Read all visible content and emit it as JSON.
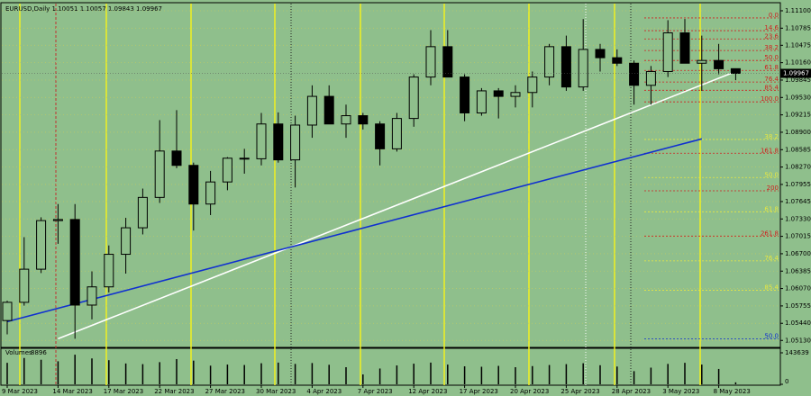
{
  "chart_data": {
    "type": "candlestick",
    "title": "EURUSD,Daily  1.10051 1.10057 1.09843 1.09967",
    "categories": [
      "9 Mar 2023",
      null,
      null,
      "14 Mar 2023",
      null,
      null,
      "17 Mar 2023",
      null,
      null,
      "22 Mar 2023",
      null,
      null,
      "27 Mar 2023",
      null,
      null,
      "30 Mar 2023",
      null,
      null,
      "4 Apr 2023",
      null,
      null,
      "7 Apr 2023",
      null,
      null,
      "12 Apr 2023",
      null,
      null,
      "17 Apr 2023",
      null,
      null,
      "20 Apr 2023",
      null,
      null,
      "25 Apr 2023",
      null,
      null,
      "28 Apr 2023",
      null,
      null,
      "3 May 2023",
      null,
      null,
      "8 May 2023",
      null
    ],
    "open": [
      1.0549,
      1.0582,
      1.0642,
      1.073,
      1.0732,
      1.0577,
      1.061,
      1.0669,
      1.0717,
      1.0772,
      1.0856,
      1.083,
      1.076,
      1.08,
      1.0843,
      1.0842,
      1.0905,
      1.084,
      1.0903,
      1.0955,
      1.0905,
      1.092,
      1.0905,
      1.086,
      1.0915,
      1.099,
      1.1045,
      1.099,
      1.0925,
      1.0965,
      1.0955,
      1.0962,
      1.099,
      1.1045,
      1.0972,
      1.104,
      1.1025,
      1.1015,
      1.0975,
      1.1,
      1.107,
      1.1015,
      1.102,
      1.10051
    ],
    "high": [
      1.0585,
      1.07,
      1.0736,
      1.076,
      1.076,
      1.0638,
      1.0685,
      1.0735,
      1.0788,
      1.0912,
      1.093,
      1.0835,
      1.082,
      1.0845,
      1.086,
      1.0925,
      1.0926,
      1.092,
      1.0975,
      1.0975,
      1.094,
      1.0925,
      1.091,
      1.0925,
      1.0995,
      1.1075,
      1.1075,
      1.0995,
      1.097,
      1.097,
      1.0975,
      1.1,
      1.105,
      1.1065,
      1.1095,
      1.105,
      1.104,
      1.102,
      1.101,
      1.1093,
      1.1095,
      1.1065,
      1.105,
      1.10057
    ],
    "low": [
      1.0524,
      1.0576,
      1.0635,
      1.0688,
      1.0516,
      1.0551,
      1.06,
      1.0634,
      1.0705,
      1.0762,
      1.0825,
      1.0712,
      1.074,
      1.0785,
      1.0815,
      1.083,
      1.0835,
      1.079,
      1.088,
      1.091,
      1.088,
      1.0895,
      1.083,
      1.0855,
      1.09,
      1.0975,
      1.099,
      1.091,
      1.092,
      1.0915,
      1.0935,
      1.0935,
      1.0975,
      1.0965,
      1.0965,
      1.1,
      1.101,
      1.094,
      1.094,
      1.099,
      1.1015,
      1.0965,
      1.0995,
      1.09843
    ],
    "close": [
      1.0582,
      1.0642,
      1.073,
      1.0732,
      1.0577,
      1.061,
      1.0669,
      1.0717,
      1.0772,
      1.0856,
      1.083,
      1.076,
      1.08,
      1.0843,
      1.0842,
      1.0905,
      1.084,
      1.0903,
      1.0955,
      1.0905,
      1.092,
      1.0905,
      1.086,
      1.0915,
      1.099,
      1.1045,
      1.099,
      1.0925,
      1.0965,
      1.0955,
      1.0962,
      1.099,
      1.1045,
      1.0972,
      1.104,
      1.1025,
      1.1015,
      1.0975,
      1.1,
      1.107,
      1.1015,
      1.102,
      1.1005,
      1.09967
    ],
    "ylim": [
      1.0502,
      1.1123
    ],
    "yticks": [
      {
        "value": 1.111,
        "label": "1.11100"
      },
      {
        "value": 1.10785,
        "label": "1.10785"
      },
      {
        "value": 1.10475,
        "label": "1.10475"
      },
      {
        "value": 1.1016,
        "label": "1.10160"
      },
      {
        "value": 1.09845,
        "label": "1.09845"
      },
      {
        "value": 1.0953,
        "label": "1.09530"
      },
      {
        "value": 1.09215,
        "label": "1.09215"
      },
      {
        "value": 1.089,
        "label": "1.08900"
      },
      {
        "value": 1.08585,
        "label": "1.08585"
      },
      {
        "value": 1.0827,
        "label": "1.08270"
      },
      {
        "value": 1.07955,
        "label": "1.07955"
      },
      {
        "value": 1.07645,
        "label": "1.07645"
      },
      {
        "value": 1.0733,
        "label": "1.07330"
      },
      {
        "value": 1.07015,
        "label": "1.07015"
      },
      {
        "value": 1.067,
        "label": "1.06700"
      },
      {
        "value": 1.06385,
        "label": "1.06385"
      },
      {
        "value": 1.0607,
        "label": "1.06070"
      },
      {
        "value": 1.05755,
        "label": "1.05755"
      },
      {
        "value": 1.0544,
        "label": "1.05440"
      },
      {
        "value": 1.0513,
        "label": "1.05130"
      }
    ],
    "grid": true,
    "fib_levels": [
      {
        "label": "0.0",
        "value": 1.1097,
        "color": "#d02020"
      },
      {
        "label": "14.6",
        "value": 1.1074,
        "color": "#d02020"
      },
      {
        "label": "23.6",
        "value": 1.1059,
        "color": "#d02020"
      },
      {
        "label": "38.2",
        "value": 1.1038,
        "color": "#d02020"
      },
      {
        "label": "50.0",
        "value": 1.102,
        "color": "#d02020"
      },
      {
        "label": "61.8",
        "value": 1.1002,
        "color": "#d02020"
      },
      {
        "label": "76.4",
        "value": 1.0981,
        "color": "#d02020"
      },
      {
        "label": "85.4",
        "value": 1.0966,
        "color": "#d02020"
      },
      {
        "label": "100.0",
        "value": 1.0945,
        "color": "#d02020"
      },
      {
        "label": "38.2",
        "value": 1.0877,
        "color": "#e8e840"
      },
      {
        "label": "161.8",
        "value": 1.0852,
        "color": "#d02020"
      },
      {
        "label": "50.0",
        "value": 1.0808,
        "color": "#e8e840"
      },
      {
        "label": "200",
        "value": 1.0784,
        "color": "#d02020"
      },
      {
        "label": "61.8",
        "value": 1.0746,
        "color": "#e8e840"
      },
      {
        "label": "261.8",
        "value": 1.0702,
        "color": "#d02020"
      },
      {
        "label": "76.4",
        "value": 1.0657,
        "color": "#e8e840"
      },
      {
        "label": "85.4",
        "value": 1.0604,
        "color": "#e8e840"
      },
      {
        "label": "50.0",
        "value": 1.0516,
        "color": "#1030d0"
      }
    ],
    "trendlines": [
      {
        "color": "#ffffff",
        "x": [
          3,
          43
        ],
        "y": [
          1.0516,
          1.1
        ]
      },
      {
        "color": "#1030d0",
        "x": [
          0,
          41
        ],
        "y": [
          1.0547,
          1.0878
        ]
      }
    ],
    "volume": {
      "title": "Volumes",
      "values": [
        98000,
        120000,
        112000,
        105000,
        135000,
        118000,
        110000,
        95000,
        92000,
        101000,
        115000,
        108000,
        85000,
        90000,
        88000,
        96000,
        99000,
        93000,
        97000,
        89000,
        78000,
        45000,
        72000,
        86000,
        94000,
        99000,
        90000,
        82000,
        80000,
        84000,
        78000,
        83000,
        88000,
        92000,
        96000,
        87000,
        81000,
        60000,
        76000,
        93000,
        98000,
        90000,
        70000,
        8896
      ],
      "ylim": [
        0,
        143639
      ],
      "yticks": [
        0,
        143639
      ]
    }
  }
}
